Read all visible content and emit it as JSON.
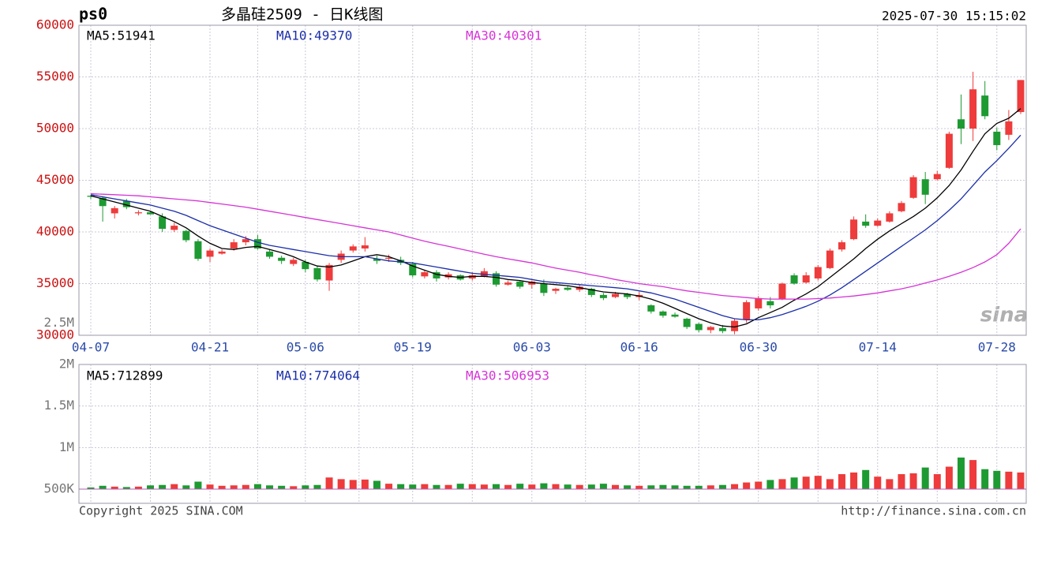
{
  "chart_data": {
    "type": "candlestick",
    "symbol": "ps0",
    "title": "多晶硅2509 - 日K线图",
    "timestamp": "2025-07-30 15:15:02",
    "categories": [
      "04-07",
      null,
      null,
      null,
      null,
      null,
      null,
      null,
      null,
      null,
      "04-21",
      null,
      null,
      null,
      null,
      null,
      null,
      null,
      "05-06",
      null,
      null,
      null,
      null,
      null,
      null,
      null,
      null,
      "05-19",
      null,
      null,
      null,
      null,
      null,
      null,
      null,
      null,
      null,
      "06-03",
      null,
      null,
      null,
      null,
      null,
      null,
      null,
      null,
      "06-16",
      null,
      null,
      null,
      null,
      null,
      null,
      null,
      null,
      null,
      "06-30",
      null,
      null,
      null,
      null,
      null,
      null,
      null,
      null,
      null,
      "07-14",
      null,
      null,
      null,
      null,
      null,
      null,
      null,
      null,
      null,
      "07-28",
      null,
      null
    ],
    "open": [
      43500,
      43300,
      41800,
      43000,
      41800,
      41900,
      41500,
      40200,
      40100,
      39100,
      37600,
      37900,
      38400,
      39000,
      39300,
      38100,
      37500,
      36900,
      37100,
      36500,
      35300,
      37300,
      38200,
      38400,
      37400,
      37400,
      37300,
      36900,
      35700,
      36100,
      35600,
      35800,
      35500,
      35700,
      36000,
      34900,
      35200,
      34900,
      35000,
      34300,
      34600,
      34400,
      34500,
      33900,
      33700,
      34000,
      33700,
      32900,
      32300,
      32000,
      31600,
      31100,
      30500,
      30700,
      30400,
      31500,
      32600,
      33300,
      33500,
      35800,
      35100,
      35500,
      36500,
      38300,
      39300,
      41000,
      40600,
      41000,
      42000,
      43300,
      45100,
      45100,
      46200,
      50900,
      50000,
      53200,
      49700,
      49400,
      51600
    ],
    "high": [
      43600,
      43400,
      42500,
      43200,
      42100,
      42000,
      41800,
      40900,
      40200,
      39300,
      38400,
      38300,
      39300,
      39600,
      39700,
      38300,
      37700,
      37500,
      37300,
      36700,
      37000,
      38200,
      38800,
      39500,
      37700,
      37800,
      37600,
      37100,
      36300,
      36300,
      36100,
      35900,
      36100,
      36500,
      36200,
      35300,
      35300,
      35300,
      35400,
      34600,
      34800,
      34900,
      34600,
      34100,
      34200,
      34100,
      34200,
      33000,
      32400,
      32200,
      31700,
      31200,
      30900,
      31000,
      31600,
      33400,
      33800,
      33700,
      35100,
      36000,
      36100,
      36800,
      38400,
      39200,
      41500,
      41700,
      41300,
      42000,
      43000,
      45500,
      45800,
      45900,
      49700,
      53300,
      55500,
      54600,
      50100,
      51800,
      54700
    ],
    "low": [
      43200,
      41000,
      41300,
      42200,
      41600,
      41700,
      40000,
      40000,
      39000,
      37200,
      37100,
      37800,
      38200,
      38700,
      38300,
      37400,
      36900,
      36700,
      36100,
      35200,
      34300,
      37000,
      38000,
      38100,
      36900,
      37100,
      36800,
      35600,
      35500,
      35200,
      35400,
      35300,
      35300,
      35600,
      34700,
      34800,
      34500,
      34500,
      33800,
      34000,
      34300,
      34200,
      33700,
      33400,
      33600,
      33500,
      33400,
      32100,
      31700,
      31700,
      30600,
      30300,
      30200,
      30200,
      30100,
      31200,
      32400,
      32600,
      33400,
      34900,
      35000,
      35300,
      36400,
      38100,
      39200,
      40400,
      40500,
      40900,
      41900,
      43200,
      42700,
      45000,
      46100,
      48500,
      48800,
      50900,
      47900,
      48900,
      51400
    ],
    "close": [
      43400,
      42500,
      42300,
      42400,
      41900,
      41700,
      40300,
      40600,
      39200,
      37400,
      38200,
      38100,
      39000,
      39300,
      38400,
      37600,
      37200,
      37300,
      36400,
      35400,
      36800,
      37900,
      38600,
      38700,
      37200,
      37500,
      37000,
      35800,
      36100,
      35500,
      35900,
      35400,
      35800,
      36200,
      34900,
      35100,
      34700,
      35200,
      34100,
      34500,
      34400,
      34700,
      33900,
      33600,
      34000,
      33700,
      33900,
      32300,
      31900,
      31800,
      30800,
      30500,
      30800,
      30400,
      31400,
      33200,
      33600,
      32900,
      35000,
      35000,
      35800,
      36600,
      38200,
      39000,
      41200,
      40600,
      41100,
      41800,
      42800,
      45300,
      43600,
      45600,
      49500,
      50000,
      53800,
      51200,
      48400,
      50700,
      54700
    ],
    "up_color": "#ee3b3b",
    "down_color": "#1e9a32",
    "ma_lines": [
      {
        "name": "MA5:51941",
        "color": "#000000",
        "values": [
          43500,
          43200,
          42900,
          42600,
          42300,
          42000,
          41500,
          41000,
          40400,
          39600,
          38900,
          38400,
          38300,
          38500,
          38600,
          38300,
          38000,
          37600,
          37100,
          36700,
          36600,
          36800,
          37200,
          37600,
          37800,
          37600,
          37200,
          36700,
          36300,
          35900,
          35700,
          35600,
          35700,
          35700,
          35600,
          35400,
          35300,
          35100,
          35000,
          34900,
          34800,
          34600,
          34400,
          34200,
          34100,
          34000,
          33800,
          33500,
          33100,
          32600,
          32100,
          31600,
          31200,
          30900,
          30800,
          31100,
          31700,
          32200,
          32700,
          33400,
          34000,
          34700,
          35600,
          36500,
          37400,
          38400,
          39300,
          40100,
          40800,
          41500,
          42300,
          43300,
          44500,
          46000,
          47800,
          49500,
          50500,
          51000,
          51941
        ]
      },
      {
        "name": "MA10:49370",
        "color": "#1a2ea8",
        "values": [
          43600,
          43400,
          43200,
          43000,
          42800,
          42600,
          42300,
          42000,
          41600,
          41100,
          40600,
          40200,
          39800,
          39400,
          39000,
          38700,
          38500,
          38300,
          38100,
          37900,
          37700,
          37600,
          37600,
          37600,
          37400,
          37200,
          37100,
          37000,
          36800,
          36600,
          36400,
          36200,
          36000,
          35900,
          35800,
          35700,
          35600,
          35400,
          35200,
          35100,
          35000,
          34900,
          34800,
          34700,
          34600,
          34500,
          34300,
          34100,
          33800,
          33500,
          33100,
          32700,
          32300,
          31900,
          31600,
          31500,
          31500,
          31700,
          32000,
          32400,
          32800,
          33300,
          33900,
          34600,
          35400,
          36200,
          37000,
          37800,
          38600,
          39400,
          40200,
          41100,
          42100,
          43200,
          44500,
          45800,
          46900,
          48100,
          49370
        ]
      },
      {
        "name": "MA30:40301",
        "color": "#d633d6",
        "values": [
          43700,
          43650,
          43600,
          43550,
          43500,
          43400,
          43300,
          43200,
          43100,
          43000,
          42850,
          42700,
          42550,
          42400,
          42200,
          42000,
          41800,
          41600,
          41400,
          41200,
          41000,
          40800,
          40600,
          40400,
          40200,
          40000,
          39700,
          39400,
          39100,
          38850,
          38600,
          38350,
          38100,
          37850,
          37600,
          37400,
          37200,
          37000,
          36750,
          36500,
          36300,
          36100,
          35850,
          35650,
          35400,
          35200,
          35000,
          34850,
          34700,
          34500,
          34300,
          34150,
          34000,
          33850,
          33750,
          33650,
          33550,
          33500,
          33500,
          33500,
          33500,
          33550,
          33600,
          33700,
          33800,
          33950,
          34100,
          34300,
          34500,
          34750,
          35050,
          35350,
          35700,
          36100,
          36550,
          37100,
          37800,
          38900,
          40301
        ]
      }
    ],
    "ylim": [
      30000,
      60000
    ],
    "yticks": [
      30000,
      35000,
      40000,
      45000,
      50000,
      55000,
      60000
    ],
    "grid": true,
    "volume": {
      "values": [
        520000,
        540000,
        530000,
        525000,
        530000,
        545000,
        550000,
        560000,
        545000,
        590000,
        555000,
        540000,
        545000,
        550000,
        560000,
        545000,
        540000,
        535000,
        545000,
        550000,
        640000,
        620000,
        610000,
        615000,
        600000,
        565000,
        560000,
        555000,
        560000,
        550000,
        550000,
        565000,
        560000,
        555000,
        560000,
        550000,
        565000,
        555000,
        570000,
        560000,
        555000,
        550000,
        555000,
        565000,
        550000,
        545000,
        540000,
        545000,
        550000,
        545000,
        540000,
        540000,
        545000,
        550000,
        560000,
        580000,
        590000,
        610000,
        620000,
        640000,
        650000,
        660000,
        620000,
        680000,
        700000,
        730000,
        650000,
        620000,
        680000,
        690000,
        760000,
        680000,
        770000,
        880000,
        850000,
        740000,
        720000,
        710000,
        700000
      ],
      "ylim": [
        500000,
        2000000
      ],
      "yticks": [
        {
          "value": 500000,
          "label": "500K"
        },
        {
          "value": 1000000,
          "label": "1M"
        },
        {
          "value": 1500000,
          "label": "1.5M"
        },
        {
          "value": 2000000,
          "label": "2M"
        },
        {
          "value": 2500000,
          "label": "2.5M"
        }
      ],
      "ma_labels": [
        {
          "text": "MA5:712899",
          "color": "#000000"
        },
        {
          "text": "MA10:774064",
          "color": "#1a2ea8"
        },
        {
          "text": "MA30:506953",
          "color": "#d633d6"
        }
      ]
    },
    "copyright": "Copyright 2025 SINA.COM",
    "url": "http://finance.sina.com.cn",
    "watermark": "sina"
  }
}
